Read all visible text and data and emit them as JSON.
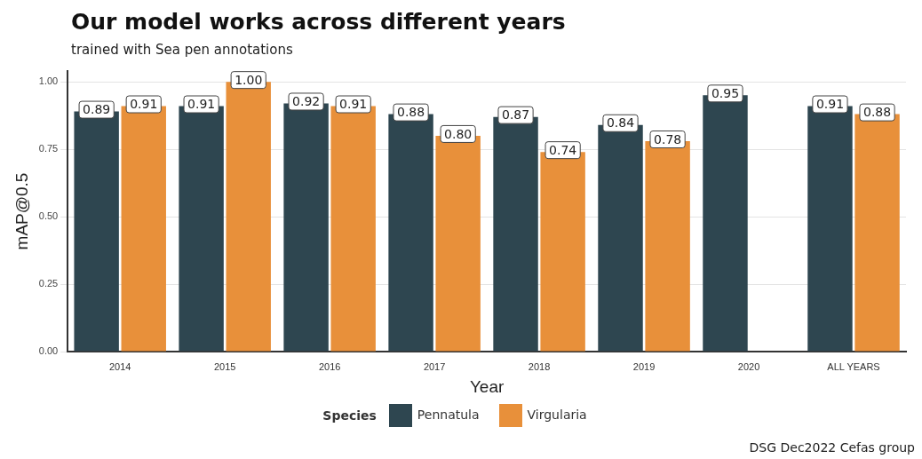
{
  "chart_data": {
    "type": "bar",
    "title": "Our model works across different years",
    "subtitle": "trained with Sea pen annotations",
    "xlabel": "Year",
    "ylabel": "mAP@0.5",
    "legend_title": "Species",
    "categories": [
      "2014",
      "2015",
      "2016",
      "2017",
      "2018",
      "2019",
      "2020",
      "ALL YEARS"
    ],
    "series": [
      {
        "name": "Pennatula",
        "color": "#2e4650",
        "values": [
          0.89,
          0.91,
          0.92,
          0.88,
          0.87,
          0.84,
          0.95,
          0.91
        ],
        "value_labels": [
          "0.89",
          "0.91",
          "0.92",
          "0.88",
          "0.87",
          "0.84",
          "0.95",
          "0.91"
        ]
      },
      {
        "name": "Virgularia",
        "color": "#e8903a",
        "values": [
          0.91,
          1.0,
          0.91,
          0.8,
          0.74,
          0.78,
          null,
          0.88
        ],
        "value_labels": [
          "0.91",
          "1.00",
          "0.91",
          "0.80",
          "0.74",
          "0.78",
          null,
          "0.88"
        ]
      }
    ],
    "ylim": [
      0,
      1.04
    ],
    "yticks": [
      {
        "value": 0,
        "label": "0.00"
      },
      {
        "value": 0.25,
        "label": "0.25"
      },
      {
        "value": 0.5,
        "label": "0.50"
      },
      {
        "value": 0.75,
        "label": "0.75"
      },
      {
        "value": 1,
        "label": "1.00"
      }
    ],
    "grid": "y",
    "legend": "bottom",
    "annotations": [
      "DSG Dec2022 Cefas group"
    ]
  }
}
